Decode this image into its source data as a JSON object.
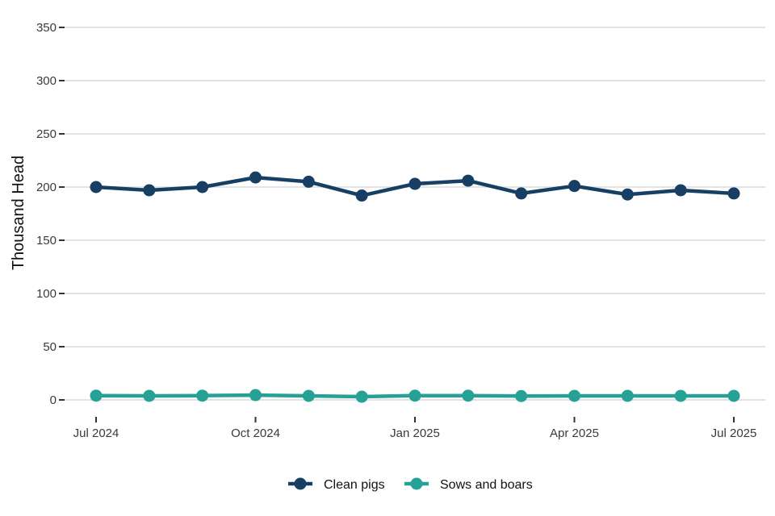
{
  "chart_data": {
    "type": "line",
    "title": "",
    "xlabel": "",
    "ylabel": "Thousand Head",
    "x": [
      "2024-07",
      "2024-08",
      "2024-09",
      "2024-10",
      "2024-11",
      "2024-12",
      "2025-01",
      "2025-02",
      "2025-03",
      "2025-04",
      "2025-05",
      "2025-06",
      "2025-07"
    ],
    "x_tick_labels": [
      "Jul 2024",
      "Oct 2024",
      "Jan 2025",
      "Apr 2025",
      "Jul 2025"
    ],
    "x_tick_positions": [
      "2024-07",
      "2024-10",
      "2025-01",
      "2025-04",
      "2025-07"
    ],
    "ylim": [
      0,
      350
    ],
    "y_ticks": [
      0,
      50,
      100,
      150,
      200,
      250,
      300,
      350
    ],
    "grid": "horizontal",
    "legend_position": "bottom",
    "series": [
      {
        "name": "Clean pigs",
        "color": "#173f64",
        "values": [
          200,
          197,
          200,
          209,
          205,
          192,
          203,
          206,
          194,
          201,
          193,
          197,
          194
        ]
      },
      {
        "name": "Sows and boars",
        "color": "#26a195",
        "values": [
          4,
          3.8,
          4,
          4.5,
          3.8,
          3,
          4,
          4,
          3.6,
          3.8,
          3.8,
          3.8,
          3.8
        ]
      }
    ]
  }
}
